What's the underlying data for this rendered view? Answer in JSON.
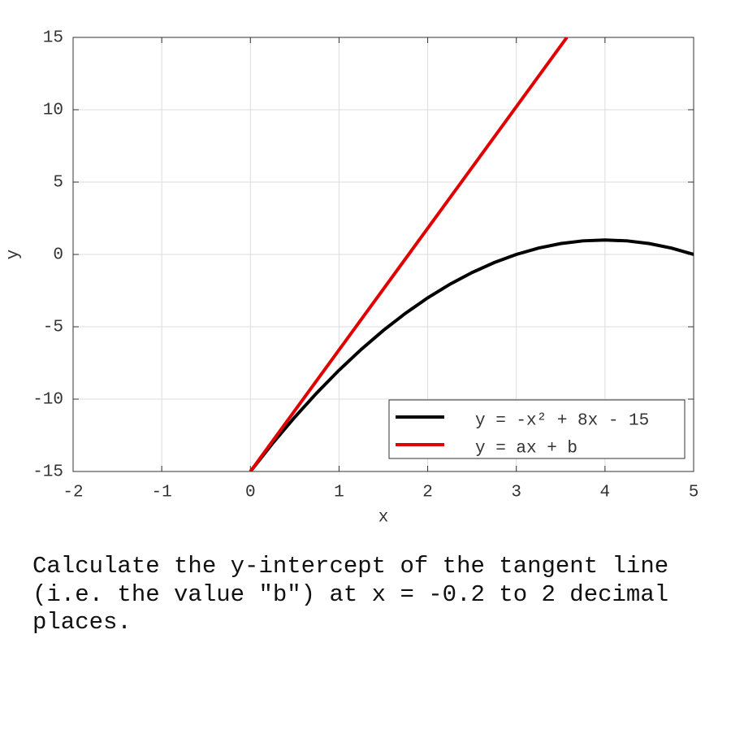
{
  "chart_data": {
    "type": "line",
    "xlabel": "x",
    "ylabel": "y",
    "xlim": [
      -2,
      5
    ],
    "xticks": [
      -2,
      -1,
      0,
      1,
      2,
      3,
      4,
      5
    ],
    "ylim": [
      -15,
      15
    ],
    "yticks": [
      -15,
      -10,
      -5,
      0,
      5,
      10,
      15
    ],
    "grid": true,
    "legend": "lower right",
    "series": [
      {
        "name": "y = -x² + 8x - 15",
        "color": "#000000",
        "x": [
          0,
          0.25,
          0.5,
          0.75,
          1,
          1.25,
          1.5,
          1.75,
          2,
          2.25,
          2.5,
          2.75,
          3,
          3.25,
          3.5,
          3.75,
          4,
          4.25,
          4.5,
          4.75,
          5
        ],
        "values": [
          -15,
          -13.0625,
          -11.25,
          -9.5625,
          -8,
          -6.5625,
          -5.25,
          -4.0625,
          -3,
          -2.0625,
          -1.25,
          -0.5625,
          0,
          0.4375,
          0.75,
          0.9375,
          1,
          0.9375,
          0.75,
          0.4375,
          0
        ]
      },
      {
        "name": "y = ax + b",
        "color": "#e00000",
        "x": [
          0,
          3.57
        ],
        "values": [
          -15,
          15
        ]
      }
    ]
  },
  "question": "Calculate the y-intercept of the tangent line (i.e. the value \"b\") at x = -0.2 to 2 decimal places."
}
